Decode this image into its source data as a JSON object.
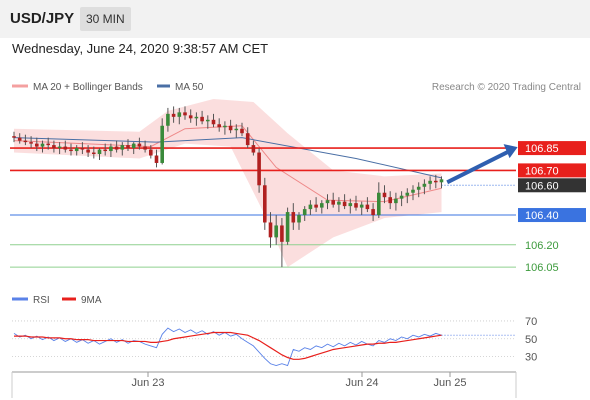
{
  "header": {
    "symbol": "USD/JPY",
    "timeframe": "30 MIN"
  },
  "timestamp": "Wednesday, June 24, 2020 9:38:57 AM CET",
  "legend": {
    "bb_label": "MA 20 + Bollinger Bands",
    "ma50_label": "MA 50",
    "rsi_label": "RSI",
    "rsi_ma_label": "9MA"
  },
  "copyright": "Research © 2020 Trading Central",
  "colors": {
    "resistance": "#e8201c",
    "support": "#3a73e0",
    "target": "#3c9a3c",
    "current": "#333333",
    "bb": "#f4a0a0",
    "ma50": "#4a6fa5",
    "rsi": "#5a82e8",
    "arrow": "#2f5fb0"
  },
  "chart_data": [
    {
      "type": "candlestick",
      "x_ticks": [
        "Jun 23",
        "Jun 24",
        "Jun 25"
      ],
      "ylim": [
        105.95,
        107.2
      ],
      "levels": [
        {
          "value": 106.85,
          "label": "106.85",
          "kind": "resistance"
        },
        {
          "value": 106.7,
          "label": "106.70",
          "kind": "resistance"
        },
        {
          "value": 106.6,
          "label": "106.60",
          "kind": "current"
        },
        {
          "value": 106.4,
          "label": "106.40",
          "kind": "support"
        },
        {
          "value": 106.2,
          "label": "106.20",
          "kind": "target"
        },
        {
          "value": 106.05,
          "label": "106.05",
          "kind": "target"
        }
      ],
      "candles": [
        [
          0,
          106.93,
          106.96,
          106.89,
          106.92
        ],
        [
          1,
          106.92,
          106.95,
          106.88,
          106.9
        ],
        [
          2,
          106.9,
          106.94,
          106.87,
          106.89
        ],
        [
          3,
          106.89,
          106.93,
          106.85,
          106.88
        ],
        [
          4,
          106.88,
          106.92,
          106.83,
          106.86
        ],
        [
          5,
          106.86,
          106.9,
          106.82,
          106.88
        ],
        [
          6,
          106.88,
          106.92,
          106.84,
          106.87
        ],
        [
          7,
          106.87,
          106.9,
          106.82,
          106.85
        ],
        [
          8,
          106.85,
          106.89,
          106.81,
          106.86
        ],
        [
          9,
          106.86,
          106.9,
          106.82,
          106.84
        ],
        [
          10,
          106.84,
          106.88,
          106.8,
          106.83
        ],
        [
          11,
          106.83,
          106.87,
          106.8,
          106.85
        ],
        [
          12,
          106.85,
          106.89,
          106.81,
          106.84
        ],
        [
          13,
          106.84,
          106.87,
          106.79,
          106.82
        ],
        [
          14,
          106.82,
          106.86,
          106.78,
          106.81
        ],
        [
          15,
          106.81,
          106.85,
          106.77,
          106.84
        ],
        [
          16,
          106.84,
          106.88,
          106.8,
          106.83
        ],
        [
          17,
          106.83,
          106.88,
          106.79,
          106.86
        ],
        [
          18,
          106.86,
          106.9,
          106.82,
          106.84
        ],
        [
          19,
          106.84,
          106.89,
          106.8,
          106.87
        ],
        [
          20,
          106.87,
          106.91,
          106.83,
          106.85
        ],
        [
          21,
          106.85,
          106.89,
          106.81,
          106.88
        ],
        [
          22,
          106.88,
          106.92,
          106.84,
          106.86
        ],
        [
          23,
          106.86,
          106.9,
          106.82,
          106.84
        ],
        [
          24,
          106.84,
          106.87,
          106.78,
          106.8
        ],
        [
          25,
          106.8,
          106.84,
          106.72,
          106.75
        ],
        [
          26,
          106.75,
          107.05,
          106.74,
          107.0
        ],
        [
          27,
          107.0,
          107.12,
          106.96,
          107.08
        ],
        [
          28,
          107.08,
          107.13,
          107.02,
          107.06
        ],
        [
          29,
          107.06,
          107.12,
          107.01,
          107.09
        ],
        [
          30,
          107.09,
          107.13,
          107.04,
          107.07
        ],
        [
          31,
          107.07,
          107.11,
          107.02,
          107.05
        ],
        [
          32,
          107.05,
          107.09,
          107.0,
          107.06
        ],
        [
          33,
          107.06,
          107.1,
          107.01,
          107.03
        ],
        [
          34,
          107.03,
          107.07,
          106.98,
          107.04
        ],
        [
          35,
          107.04,
          107.08,
          106.99,
          107.01
        ],
        [
          36,
          107.01,
          107.05,
          106.96,
          106.99
        ],
        [
          37,
          106.99,
          107.03,
          106.94,
          107.0
        ],
        [
          38,
          107.0,
          107.04,
          106.95,
          106.97
        ],
        [
          39,
          106.97,
          107.01,
          106.92,
          106.98
        ],
        [
          40,
          106.98,
          107.02,
          106.93,
          106.95
        ],
        [
          41,
          106.95,
          106.99,
          106.85,
          106.87
        ],
        [
          42,
          106.87,
          106.9,
          106.8,
          106.82
        ],
        [
          43,
          106.82,
          106.85,
          106.55,
          106.6
        ],
        [
          44,
          106.6,
          106.65,
          106.3,
          106.35
        ],
        [
          45,
          106.35,
          106.42,
          106.18,
          106.25
        ],
        [
          46,
          106.25,
          106.4,
          106.2,
          106.33
        ],
        [
          47,
          106.33,
          106.38,
          106.05,
          106.22
        ],
        [
          48,
          106.22,
          106.45,
          106.2,
          106.42
        ],
        [
          49,
          106.42,
          106.48,
          106.3,
          106.35
        ],
        [
          50,
          106.35,
          106.42,
          106.3,
          106.4
        ],
        [
          51,
          106.4,
          106.46,
          106.36,
          106.44
        ],
        [
          52,
          106.44,
          106.5,
          106.4,
          106.47
        ],
        [
          53,
          106.47,
          106.52,
          106.42,
          106.45
        ],
        [
          54,
          106.45,
          106.5,
          106.41,
          106.48
        ],
        [
          55,
          106.48,
          106.54,
          106.44,
          106.5
        ],
        [
          56,
          106.5,
          106.55,
          106.45,
          106.47
        ],
        [
          57,
          106.47,
          106.52,
          106.42,
          106.49
        ],
        [
          58,
          106.49,
          106.54,
          106.44,
          106.46
        ],
        [
          59,
          106.46,
          106.51,
          106.41,
          106.48
        ],
        [
          60,
          106.48,
          106.53,
          106.43,
          106.45
        ],
        [
          61,
          106.45,
          106.49,
          106.4,
          106.47
        ],
        [
          62,
          106.47,
          106.52,
          106.42,
          106.44
        ],
        [
          63,
          106.44,
          106.48,
          106.36,
          106.4
        ],
        [
          64,
          106.4,
          106.62,
          106.38,
          106.55
        ],
        [
          65,
          106.55,
          106.6,
          106.48,
          106.52
        ],
        [
          66,
          106.52,
          106.56,
          106.44,
          106.48
        ],
        [
          67,
          106.48,
          106.55,
          106.43,
          106.51
        ],
        [
          68,
          106.51,
          106.56,
          106.46,
          106.53
        ],
        [
          69,
          106.53,
          106.58,
          106.48,
          106.55
        ],
        [
          70,
          106.55,
          106.6,
          106.5,
          106.57
        ],
        [
          71,
          106.57,
          106.62,
          106.52,
          106.59
        ],
        [
          72,
          106.59,
          106.64,
          106.54,
          106.61
        ],
        [
          73,
          106.61,
          106.66,
          106.57,
          106.63
        ],
        [
          74,
          106.63,
          106.67,
          106.58,
          106.62
        ],
        [
          75,
          106.62,
          106.66,
          106.58,
          106.64
        ]
      ],
      "ma50": [
        [
          0,
          106.92
        ],
        [
          25,
          106.89
        ],
        [
          40,
          106.92
        ],
        [
          60,
          106.78
        ],
        [
          75,
          106.65
        ]
      ],
      "ma20": [
        [
          0,
          106.9
        ],
        [
          24,
          106.86
        ],
        [
          30,
          106.98
        ],
        [
          40,
          107.0
        ],
        [
          46,
          106.72
        ],
        [
          55,
          106.5
        ],
        [
          65,
          106.49
        ],
        [
          75,
          106.58
        ]
      ],
      "bb_upper": [
        [
          0,
          106.98
        ],
        [
          22,
          106.96
        ],
        [
          27,
          107.1
        ],
        [
          35,
          107.18
        ],
        [
          42,
          107.16
        ],
        [
          48,
          106.95
        ],
        [
          56,
          106.7
        ],
        [
          65,
          106.66
        ],
        [
          75,
          106.68
        ]
      ],
      "bb_lower": [
        [
          0,
          106.82
        ],
        [
          22,
          106.78
        ],
        [
          30,
          106.88
        ],
        [
          38,
          106.86
        ],
        [
          44,
          106.4
        ],
        [
          48,
          106.05
        ],
        [
          56,
          106.25
        ],
        [
          65,
          106.38
        ],
        [
          75,
          106.42
        ]
      ],
      "forecast_arrow": {
        "from": [
          76,
          106.62
        ],
        "to": [
          88,
          106.85
        ]
      }
    },
    {
      "type": "line",
      "title": "RSI",
      "y_ticks": [
        70,
        50,
        30
      ],
      "ylim": [
        15,
        80
      ],
      "series": [
        {
          "name": "RSI",
          "values": [
            56,
            52,
            54,
            50,
            53,
            49,
            52,
            48,
            51,
            47,
            50,
            46,
            49,
            45,
            48,
            44,
            47,
            50,
            46,
            49,
            45,
            48,
            47,
            44,
            42,
            40,
            55,
            62,
            58,
            61,
            57,
            60,
            56,
            59,
            55,
            58,
            54,
            57,
            53,
            55,
            50,
            46,
            42,
            35,
            28,
            22,
            20,
            22,
            20,
            38,
            36,
            40,
            38,
            42,
            40,
            44,
            41,
            45,
            42,
            46,
            43,
            47,
            44,
            42,
            48,
            46,
            50,
            48,
            52,
            50,
            54,
            52,
            55,
            53,
            56,
            54
          ]
        },
        {
          "name": "9MA",
          "values": [
            53,
            53,
            53,
            52,
            52,
            52,
            51,
            51,
            51,
            50,
            50,
            49,
            49,
            49,
            48,
            48,
            48,
            48,
            48,
            48,
            47,
            47,
            47,
            47,
            46,
            46,
            47,
            48,
            50,
            51,
            52,
            53,
            54,
            55,
            56,
            57,
            57,
            57,
            57,
            56,
            55,
            54,
            51,
            48,
            44,
            40,
            36,
            32,
            29,
            27,
            27,
            28,
            30,
            32,
            34,
            36,
            38,
            39,
            40,
            41,
            42,
            43,
            44,
            44,
            45,
            45,
            46,
            46,
            47,
            48,
            49,
            50,
            51,
            52,
            53,
            54
          ]
        }
      ]
    }
  ]
}
